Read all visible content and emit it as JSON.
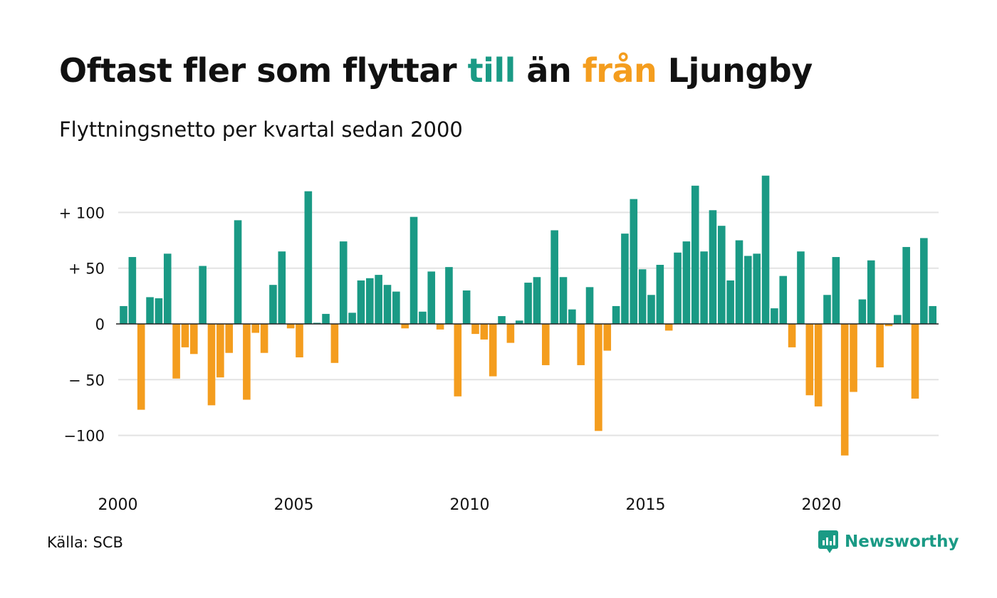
{
  "header": {
    "title_part1": "Oftast fler som flyttar ",
    "title_till": "till",
    "title_part2": " än ",
    "title_fran": "från",
    "title_part3": " Ljungby",
    "subtitle": "Flyttningsnetto per kvartal sedan 2000"
  },
  "footer": {
    "source": "Källa: SCB",
    "brand": "Newsworthy"
  },
  "colors": {
    "positive": "#1a9a85",
    "negative": "#f49d1e",
    "grid": "#e3e3e3",
    "zero": "#222222",
    "brand": "#1a9a85"
  },
  "chart_data": {
    "type": "bar",
    "title": "Oftast fler som flyttar till än från Ljungby",
    "subtitle": "Flyttningsnetto per kvartal sedan 2000",
    "x_start_year": 2000,
    "periods_per_year": 4,
    "x_ticks": [
      2000,
      2005,
      2010,
      2015,
      2020
    ],
    "y_ticks": [
      {
        "value": 100,
        "label": "+ 100"
      },
      {
        "value": 50,
        "label": "+  50"
      },
      {
        "value": 0,
        "label": "0"
      },
      {
        "value": -50,
        "label": "− 50"
      },
      {
        "value": -100,
        "label": "−100"
      }
    ],
    "ylim": [
      -135,
      135
    ],
    "grid": true,
    "values": [
      16,
      60,
      -77,
      24,
      23,
      63,
      -49,
      -21,
      -27,
      52,
      -73,
      -48,
      -26,
      93,
      -68,
      -8,
      -26,
      35,
      65,
      -4,
      -30,
      119,
      1,
      9,
      -35,
      74,
      10,
      39,
      41,
      44,
      35,
      29,
      -4,
      96,
      11,
      47,
      -5,
      51,
      -65,
      30,
      -9,
      -14,
      -47,
      7,
      -17,
      3,
      37,
      42,
      -37,
      84,
      42,
      13,
      -37,
      33,
      -96,
      -24,
      16,
      81,
      112,
      49,
      26,
      53,
      -6,
      64,
      74,
      124,
      65,
      102,
      88,
      39,
      75,
      61,
      63,
      133,
      14,
      43,
      -21,
      65,
      -64,
      -74,
      26,
      60,
      -118,
      -61,
      22,
      57,
      -39,
      -2,
      8,
      69,
      -67,
      77,
      16
    ]
  }
}
